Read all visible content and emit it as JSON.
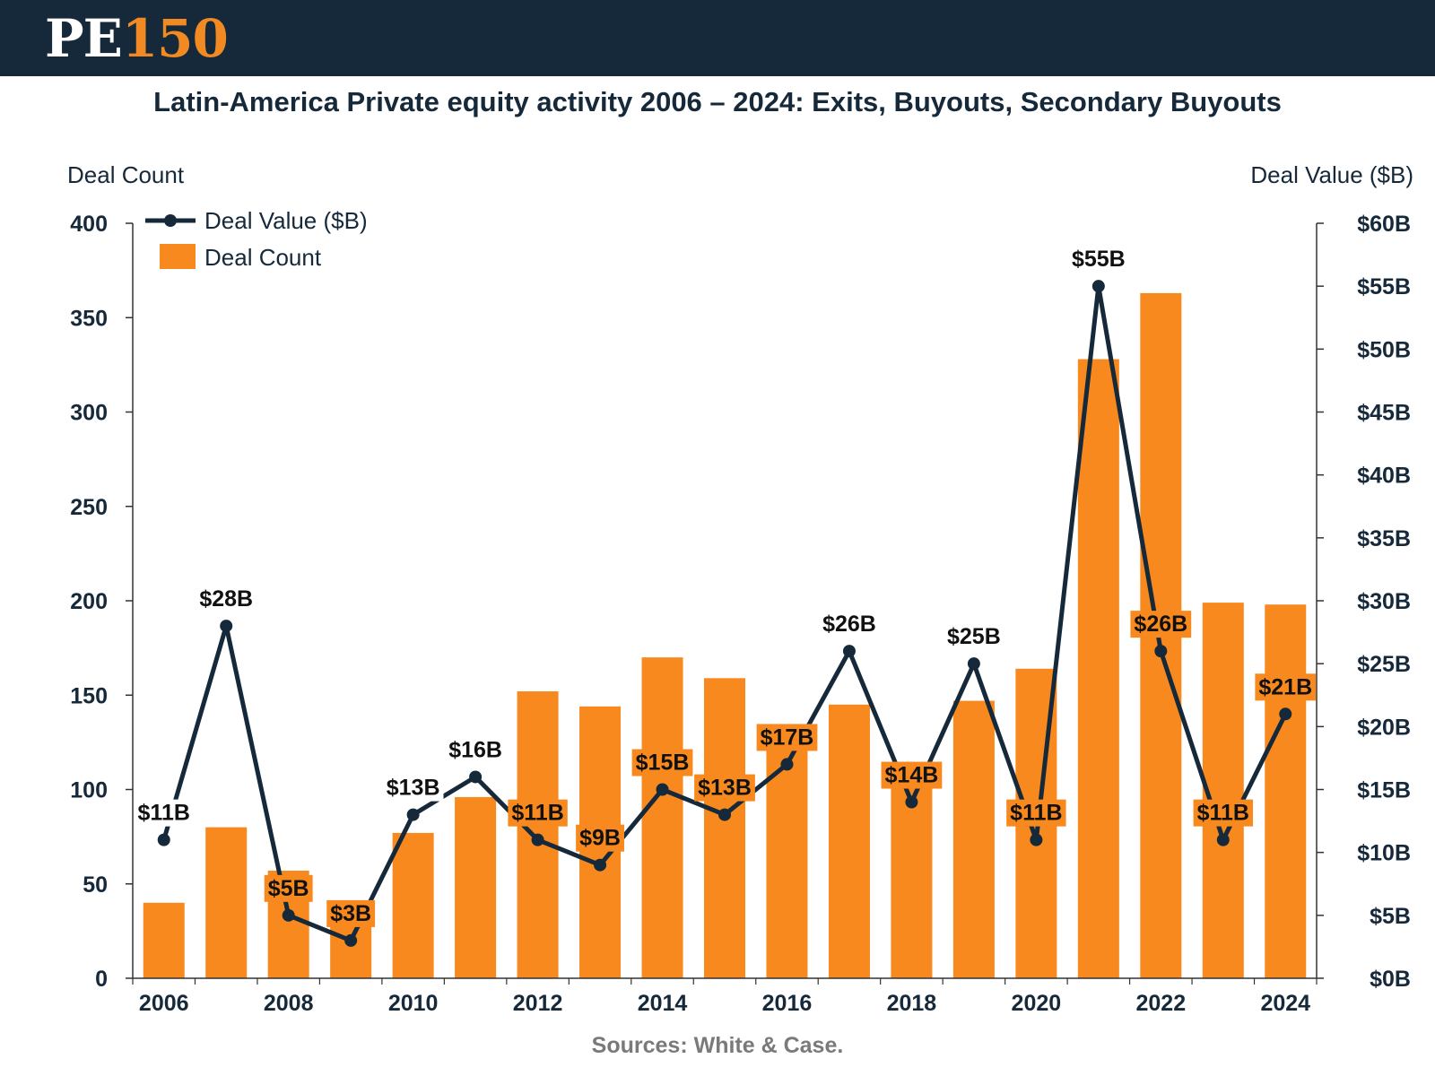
{
  "header": {
    "logo_pe": "PE",
    "logo_num": "150"
  },
  "title": "Latin-America Private equity activity 2006 – 2024: Exits, Buyouts, Secondary Buyouts",
  "axis_left_title": "Deal Count",
  "axis_right_title": "Deal Value ($B)",
  "source": "Sources: White & Case.",
  "colors": {
    "bar": "#f7891f",
    "line": "#16293a",
    "header": "#16293a"
  },
  "chart_data": {
    "type": "bar",
    "categories": [
      "2006",
      "2007",
      "2008",
      "2009",
      "2010",
      "2011",
      "2012",
      "2013",
      "2014",
      "2015",
      "2016",
      "2017",
      "2018",
      "2019",
      "2020",
      "2021",
      "2022",
      "2023",
      "2024"
    ],
    "x_tick_labels": [
      "2006",
      "2008",
      "2010",
      "2012",
      "2014",
      "2016",
      "2018",
      "2020",
      "2022",
      "2024"
    ],
    "series": [
      {
        "name": "Deal Count",
        "type": "bar",
        "axis": "left",
        "values": [
          40,
          80,
          57,
          28,
          77,
          96,
          152,
          144,
          170,
          159,
          121,
          145,
          101,
          147,
          164,
          328,
          363,
          199,
          198
        ]
      },
      {
        "name": "Deal Value ($B)",
        "type": "line",
        "axis": "right",
        "values": [
          11,
          28,
          5,
          3,
          13,
          16,
          11,
          9,
          15,
          13,
          17,
          26,
          14,
          25,
          11,
          55,
          26,
          11,
          21
        ],
        "data_labels": [
          "$11B",
          "$28B",
          "$5B",
          "$3B",
          "$13B",
          "$16B",
          "$11B",
          "$9B",
          "$15B",
          "$13B",
          "$17B",
          "$26B",
          "$14B",
          "$25B",
          "$11B",
          "$55B",
          "$26B",
          "$11B",
          "$21B"
        ]
      }
    ],
    "y_left": {
      "label": "Deal Count",
      "ylim": [
        0,
        400
      ],
      "ticks": [
        "0",
        "50",
        "100",
        "150",
        "200",
        "250",
        "300",
        "350",
        "400"
      ]
    },
    "y_right": {
      "label": "Deal Value ($B)",
      "ylim": [
        0,
        60
      ],
      "ticks": [
        "$0B",
        "$5B",
        "$10B",
        "$15B",
        "$20B",
        "$25B",
        "$30B",
        "$35B",
        "$40B",
        "$45B",
        "$50B",
        "$55B",
        "$60B"
      ]
    },
    "legend": {
      "position": "top-left",
      "entries": [
        "Deal Value ($B)",
        "Deal Count"
      ]
    },
    "grid": false
  }
}
